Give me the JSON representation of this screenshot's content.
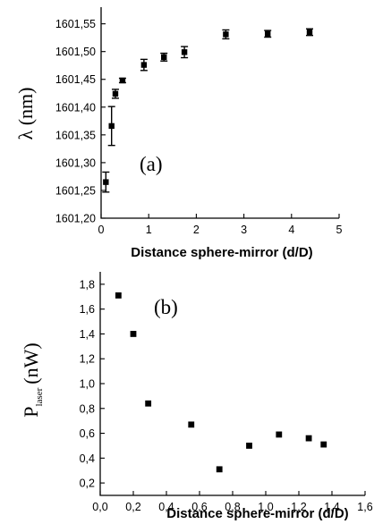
{
  "chart_data": [
    {
      "type": "scatter",
      "panel_label": "(a)",
      "xlabel": "Distance sphere-mirror (d/D)",
      "ylabel": "λ (nm)",
      "xlim": [
        0,
        5
      ],
      "ylim": [
        1601.2,
        1601.58
      ],
      "xticks": [
        "0",
        "1",
        "2",
        "3",
        "4",
        "5"
      ],
      "yticks": [
        "1601,20",
        "1601,25",
        "1601,30",
        "1601,35",
        "1601,40",
        "1601,45",
        "1601,50",
        "1601,55"
      ],
      "grid": false,
      "legend": "none",
      "points": [
        {
          "x": 0.1,
          "y": 1601.265,
          "err": 0.018
        },
        {
          "x": 0.22,
          "y": 1601.366,
          "err": 0.035
        },
        {
          "x": 0.3,
          "y": 1601.424,
          "err": 0.008
        },
        {
          "x": 0.45,
          "y": 1601.448,
          "err": 0.004
        },
        {
          "x": 0.9,
          "y": 1601.476,
          "err": 0.01
        },
        {
          "x": 1.32,
          "y": 1601.49,
          "err": 0.007
        },
        {
          "x": 1.75,
          "y": 1601.499,
          "err": 0.01
        },
        {
          "x": 2.62,
          "y": 1601.531,
          "err": 0.008
        },
        {
          "x": 3.5,
          "y": 1601.532,
          "err": 0.006
        },
        {
          "x": 4.38,
          "y": 1601.535,
          "err": 0.006
        }
      ]
    },
    {
      "type": "scatter",
      "panel_label": "(b)",
      "xlabel": "Distance sphere-mirror (d/D)",
      "ylabel": "P",
      "ylabel_subscript": "laser",
      "ylabel_suffix": "(nW)",
      "xlim": [
        0,
        1.6
      ],
      "ylim": [
        0.1,
        1.9
      ],
      "xticks": [
        "0,0",
        "0,2",
        "0,4",
        "0,6",
        "0,8",
        "1,0",
        "1,2",
        "1,4",
        "1,6"
      ],
      "yticks": [
        "0,2",
        "0,4",
        "0,6",
        "0,8",
        "1,0",
        "1,2",
        "1,4",
        "1,6",
        "1,8"
      ],
      "grid": false,
      "legend": "none",
      "points": [
        {
          "x": 0.11,
          "y": 1.71
        },
        {
          "x": 0.2,
          "y": 1.4
        },
        {
          "x": 0.29,
          "y": 0.84
        },
        {
          "x": 0.55,
          "y": 0.67
        },
        {
          "x": 0.72,
          "y": 0.31
        },
        {
          "x": 0.9,
          "y": 0.5
        },
        {
          "x": 1.08,
          "y": 0.59
        },
        {
          "x": 1.26,
          "y": 0.56
        },
        {
          "x": 1.35,
          "y": 0.51
        }
      ]
    }
  ]
}
